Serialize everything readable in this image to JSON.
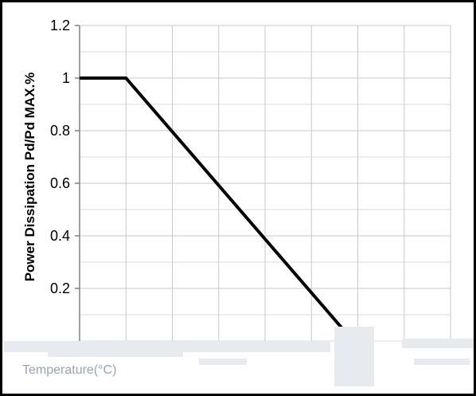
{
  "chart_data": {
    "type": "line",
    "title": "",
    "xlabel": "Temperature(°C)",
    "ylabel": "Power Dissipation Pd/Pd MAX.%",
    "ylim": [
      0,
      1.2
    ],
    "yticks": [
      0.2,
      0.4,
      0.6,
      0.8,
      1,
      1.2
    ],
    "ytick_labels": [
      "0.2",
      "0.4",
      "0.6",
      "0.8",
      "1",
      "1.2"
    ],
    "xlim": [
      0,
      8
    ],
    "grid": true,
    "series": [
      {
        "x": [
          0,
          1,
          5.9
        ],
        "y": [
          1,
          1,
          0
        ]
      }
    ]
  }
}
